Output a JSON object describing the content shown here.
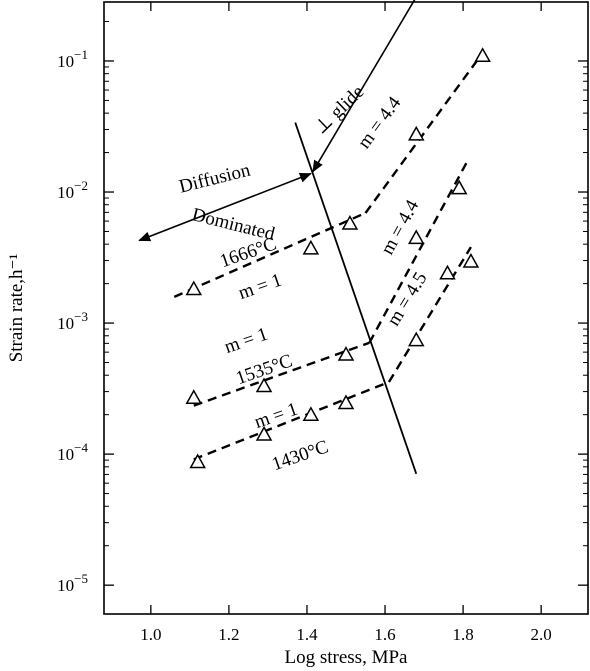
{
  "chart_data": {
    "type": "scatter",
    "title": "",
    "xlabel": "Log stress, MPa",
    "ylabel": "Strain rate,h⁻¹",
    "xlim": [
      0.88,
      2.12
    ],
    "ylim": [
      -5.22,
      -0.55
    ],
    "yscale": "log",
    "x_ticks": [
      1.0,
      1.2,
      1.4,
      1.6,
      1.8,
      2.0
    ],
    "x_tick_labels": [
      "1.0",
      "1.2",
      "1.4",
      "1.6",
      "1.8",
      "2.0"
    ],
    "y_ticks": [
      {
        "base": "10",
        "exp": "−1",
        "value": -1
      },
      {
        "base": "10",
        "exp": "−2",
        "value": -2
      },
      {
        "base": "10",
        "exp": "−3",
        "value": -3
      },
      {
        "base": "10",
        "exp": "−4",
        "value": -4
      },
      {
        "base": "10",
        "exp": "−5",
        "value": -5
      }
    ],
    "marker": "open-triangle",
    "series": [
      {
        "name": "1666°C",
        "points": [
          [
            1.11,
            -2.74
          ],
          [
            1.41,
            -2.43
          ],
          [
            1.51,
            -2.24
          ],
          [
            1.68,
            -1.56
          ],
          [
            1.85,
            -0.96
          ]
        ],
        "fits": [
          {
            "x": [
              1.06,
              1.55
            ],
            "y": [
              -2.8,
              -2.16
            ],
            "label": "m = 1"
          },
          {
            "x": [
              1.55,
              1.84
            ],
            "y": [
              -2.16,
              -0.98
            ],
            "label": "m = 4.4"
          }
        ]
      },
      {
        "name": "1535°C",
        "points": [
          [
            1.11,
            -3.57
          ],
          [
            1.29,
            -3.48
          ],
          [
            1.5,
            -3.24
          ],
          [
            1.68,
            -2.35
          ],
          [
            1.79,
            -1.97
          ]
        ],
        "fits": [
          {
            "x": [
              1.11,
              1.56
            ],
            "y": [
              -3.63,
              -3.15
            ],
            "label": "m = 1"
          },
          {
            "x": [
              1.56,
              1.81
            ],
            "y": [
              -3.15,
              -1.77
            ],
            "label": "m = 4.4"
          }
        ]
      },
      {
        "name": "1430°C",
        "points": [
          [
            1.12,
            -4.06
          ],
          [
            1.29,
            -3.85
          ],
          [
            1.41,
            -3.7
          ],
          [
            1.5,
            -3.61
          ],
          [
            1.68,
            -3.13
          ],
          [
            1.76,
            -2.62
          ],
          [
            1.82,
            -2.53
          ]
        ],
        "fits": [
          {
            "x": [
              1.11,
              1.61
            ],
            "y": [
              -4.04,
              -3.45
            ],
            "label": "m = 1"
          },
          {
            "x": [
              1.61,
              1.82
            ],
            "y": [
              -3.45,
              -2.42
            ],
            "label": "m = 4.5"
          }
        ]
      }
    ],
    "boundary_line": {
      "x": [
        1.37,
        1.68
      ],
      "y": [
        -1.47,
        -4.15
      ]
    },
    "regime_arrow": {
      "start": [
        0.97,
        -2.37
      ],
      "mid": [
        1.41,
        -1.86
      ],
      "end": [
        1.73,
        -0.26
      ]
    },
    "annotations": {
      "diffusion": "Diffusion",
      "dominated": "Dominated",
      "glide": "⊥ glide"
    }
  }
}
